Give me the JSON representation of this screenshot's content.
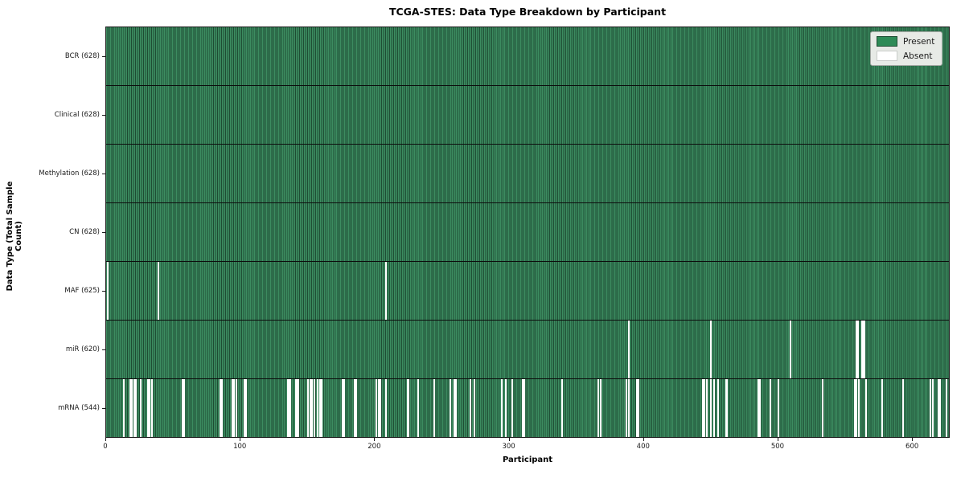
{
  "title": "TCGA-STES: Data Type Breakdown by Participant",
  "xlabel": "Participant",
  "ylabel": "Data Type (Total Sample Count)",
  "legend": {
    "present_label": "Present",
    "absent_label": "Absent"
  },
  "colors": {
    "present": "#2e8b57",
    "present_edge": "#1e4c33",
    "absent": "#ffffff",
    "row_separator": "#0d0d0d",
    "spine": "#1a1a1a",
    "legend_bg": "#e7eae6"
  },
  "chart_data": {
    "type": "heatmap",
    "title": "TCGA-STES: Data Type Breakdown by Participant",
    "xlabel": "Participant",
    "ylabel": "Data Type (Total Sample Count)",
    "legend_entries": [
      "Present",
      "Absent"
    ],
    "legend_position": "upper right",
    "grid": false,
    "x_axis": {
      "ticks": [
        0,
        100,
        200,
        300,
        400,
        500,
        600
      ],
      "range": [
        0,
        628
      ]
    },
    "total_participants": 628,
    "rows": [
      {
        "label": "BCR (628)",
        "name": "BCR",
        "present_count": 628,
        "absent_count": 0,
        "absent_participants": []
      },
      {
        "label": "Clinical (628)",
        "name": "Clinical",
        "present_count": 628,
        "absent_count": 0,
        "absent_participants": []
      },
      {
        "label": "Methylation (628)",
        "name": "Methylation",
        "present_count": 628,
        "absent_count": 0,
        "absent_participants": []
      },
      {
        "label": "CN (628)",
        "name": "CN",
        "present_count": 628,
        "absent_count": 0,
        "absent_participants": []
      },
      {
        "label": "MAF (625)",
        "name": "MAF",
        "present_count": 625,
        "absent_count": 3,
        "absent_participants": [
          1,
          39,
          208
        ]
      },
      {
        "label": "miR (620)",
        "name": "miR",
        "present_count": 620,
        "absent_count": 8,
        "absent_participants": [
          389,
          450,
          509,
          558,
          559,
          562,
          563,
          564
        ]
      },
      {
        "label": "mRNA (544)",
        "name": "mRNA",
        "present_count": 544,
        "absent_count": 84,
        "absent_participants": [
          13,
          18,
          19,
          21,
          22,
          26,
          31,
          32,
          34,
          57,
          58,
          85,
          86,
          94,
          95,
          97,
          103,
          104,
          135,
          136,
          137,
          141,
          142,
          143,
          150,
          152,
          153,
          155,
          157,
          159,
          160,
          176,
          177,
          185,
          186,
          201,
          203,
          204,
          208,
          224,
          225,
          232,
          244,
          256,
          259,
          260,
          271,
          274,
          294,
          297,
          302,
          310,
          311,
          339,
          366,
          368,
          387,
          389,
          395,
          396,
          444,
          445,
          447,
          450,
          452,
          455,
          461,
          462,
          485,
          486,
          494,
          500,
          533,
          557,
          558,
          560,
          565,
          577,
          593,
          613,
          615,
          619,
          620,
          625
        ]
      }
    ]
  }
}
